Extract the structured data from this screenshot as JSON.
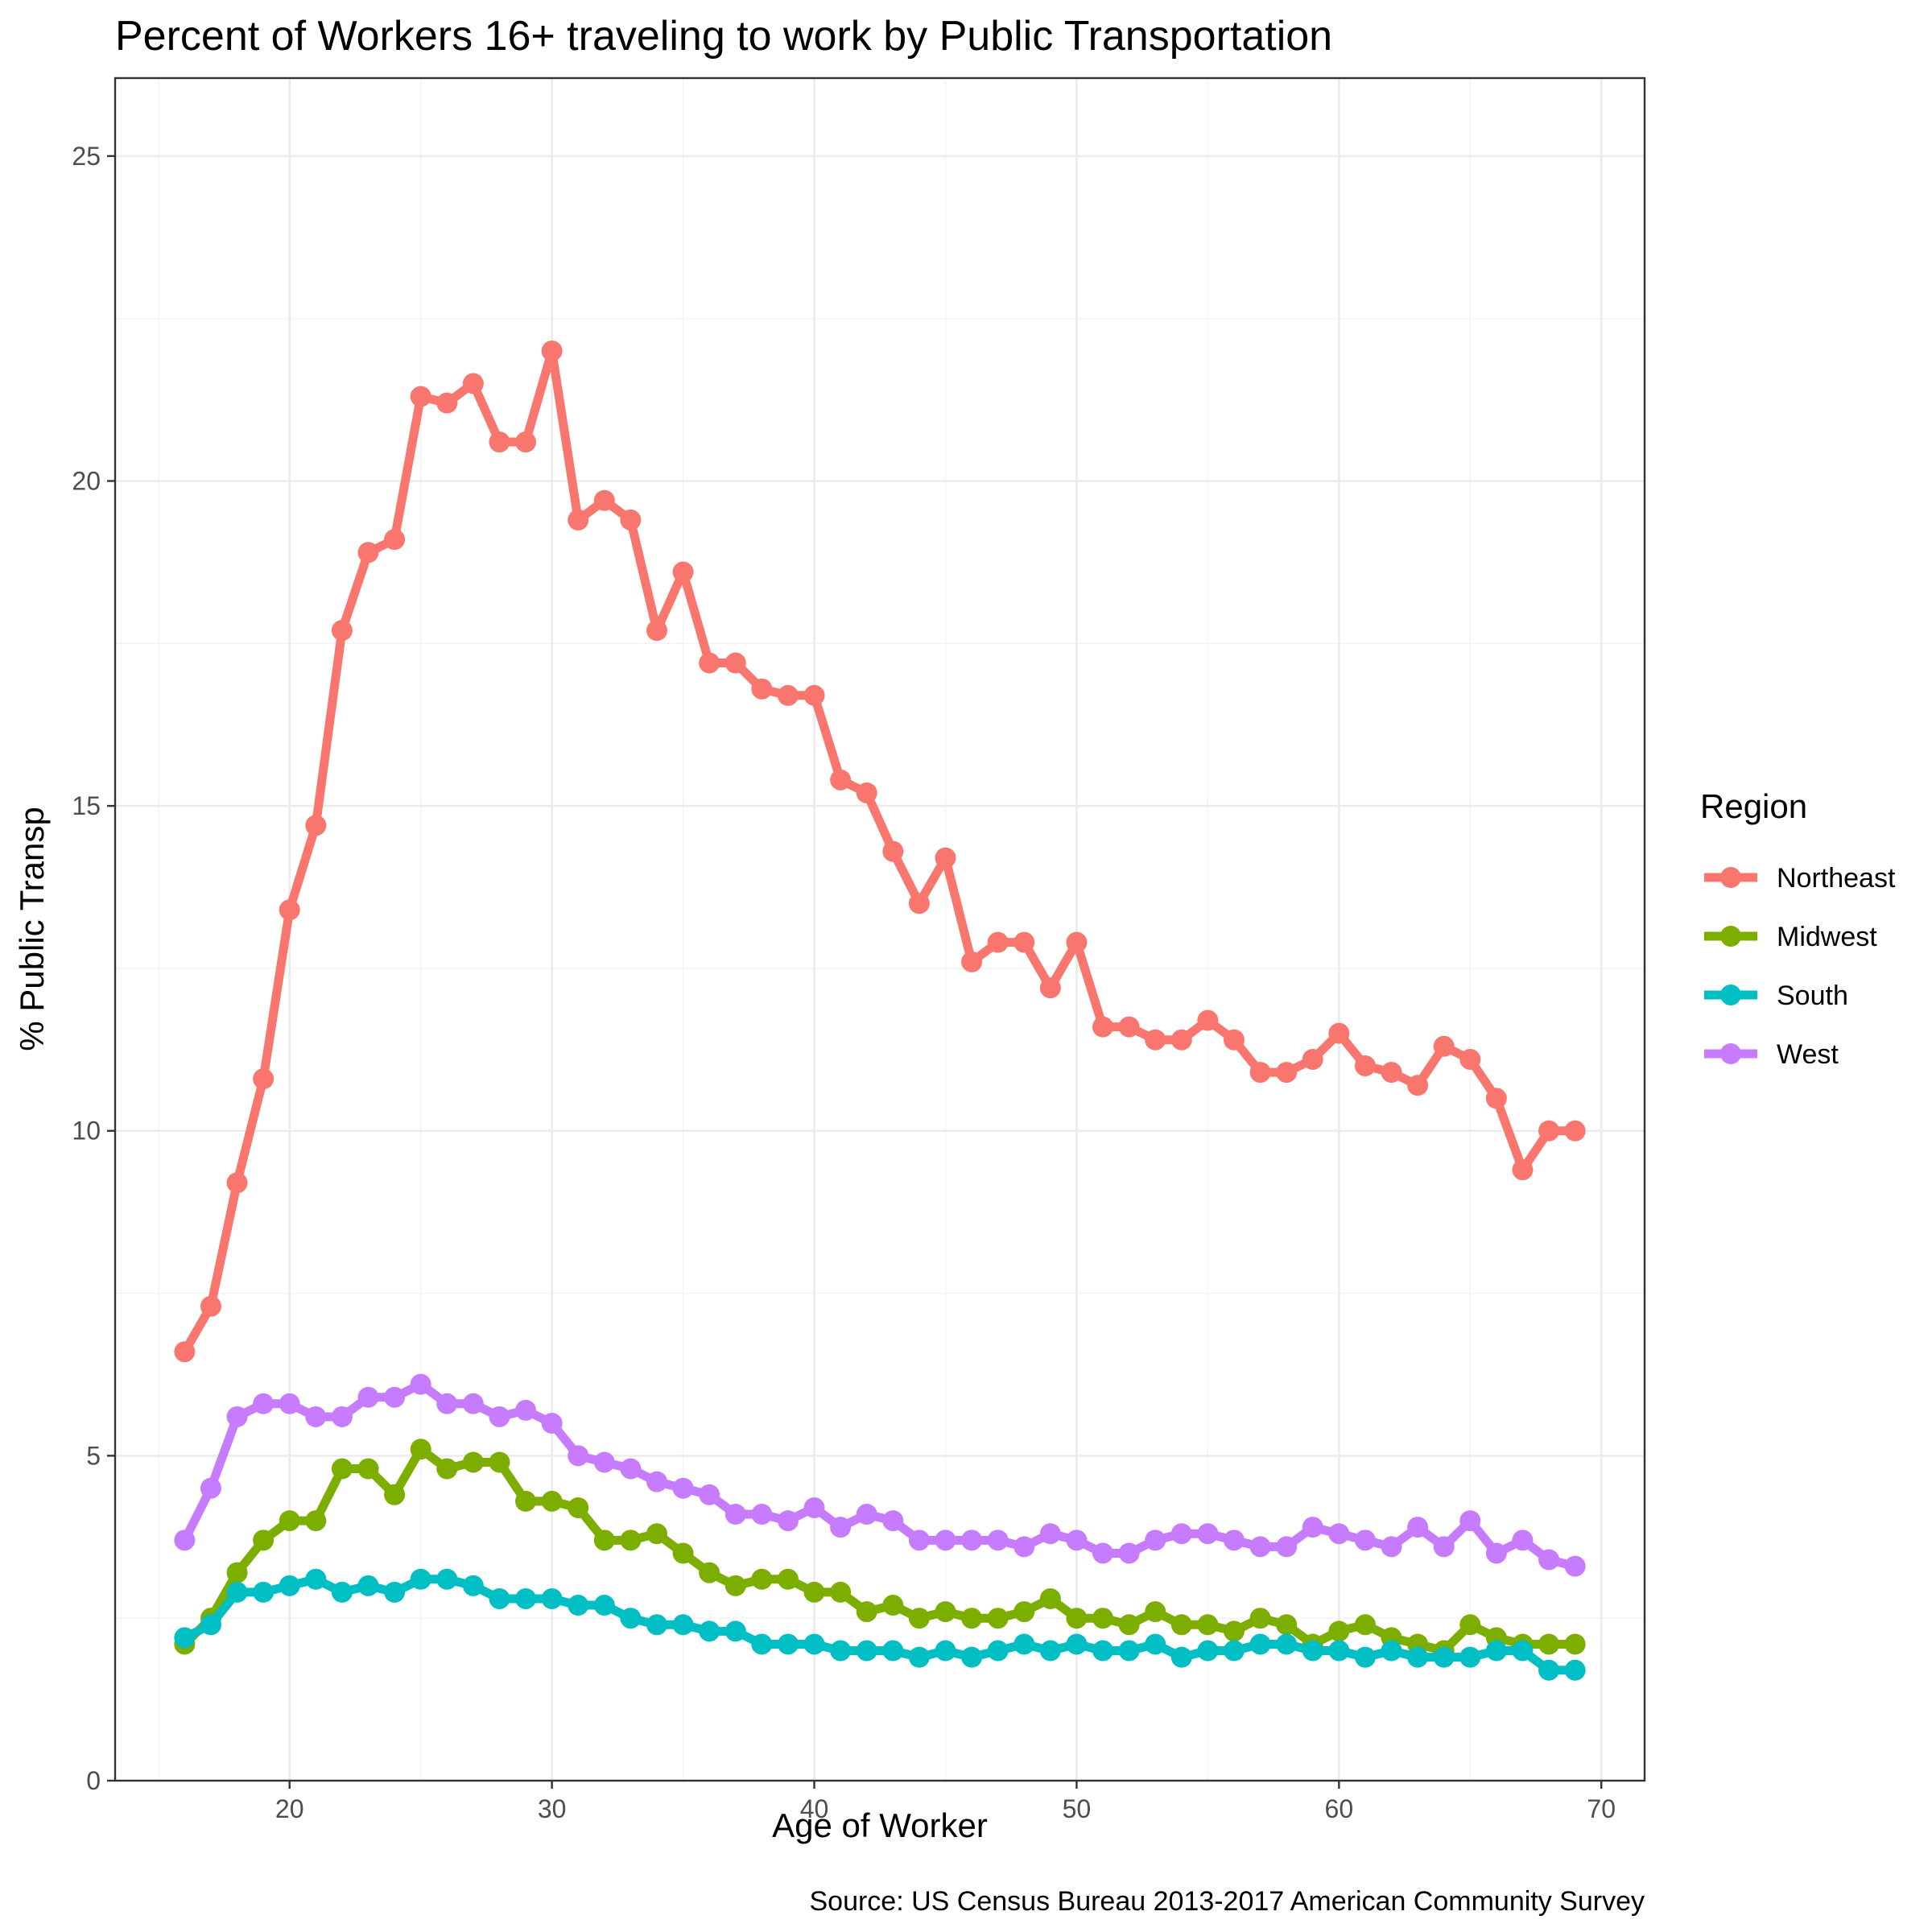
{
  "chart_data": {
    "type": "line",
    "title": "Percent of Workers 16+ traveling to work by Public Transportation",
    "xlabel": "Age of Worker",
    "ylabel": "% Public Transp",
    "caption": "Source: US Census Bureau 2013-2017 American Community Survey",
    "xlim": [
      13.35,
      71.65
    ],
    "ylim": [
      0,
      26.2
    ],
    "x_ticks": [
      20,
      30,
      40,
      50,
      60,
      70
    ],
    "y_ticks": [
      0,
      5,
      10,
      15,
      20,
      25
    ],
    "grid": true,
    "legend": {
      "title": "Region",
      "position": "right"
    },
    "x": [
      16,
      17,
      18,
      19,
      20,
      21,
      22,
      23,
      24,
      25,
      26,
      27,
      28,
      29,
      30,
      31,
      32,
      33,
      34,
      35,
      36,
      37,
      38,
      39,
      40,
      41,
      42,
      43,
      44,
      45,
      46,
      47,
      48,
      49,
      50,
      51,
      52,
      53,
      54,
      55,
      56,
      57,
      58,
      59,
      60,
      61,
      62,
      63,
      64,
      65,
      66,
      67,
      68,
      69
    ],
    "series": [
      {
        "name": "Northeast",
        "color": "#F8766D",
        "values": [
          6.6,
          7.3,
          9.2,
          10.8,
          13.4,
          14.7,
          17.7,
          18.9,
          19.1,
          21.3,
          21.2,
          21.5,
          20.6,
          20.6,
          22.0,
          19.4,
          19.7,
          19.4,
          17.7,
          18.6,
          17.2,
          17.2,
          16.8,
          16.7,
          16.7,
          15.4,
          15.2,
          14.3,
          13.5,
          14.2,
          12.6,
          12.9,
          12.9,
          12.2,
          12.9,
          11.6,
          11.6,
          11.4,
          11.4,
          11.7,
          11.4,
          10.9,
          10.9,
          11.1,
          11.5,
          11.0,
          10.9,
          10.7,
          11.3,
          11.1,
          10.5,
          9.4,
          10.0,
          10.0
        ]
      },
      {
        "name": "Midwest",
        "color": "#7CAE00",
        "values": [
          2.1,
          2.5,
          3.2,
          3.7,
          4.0,
          4.0,
          4.8,
          4.8,
          4.4,
          5.1,
          4.8,
          4.9,
          4.9,
          4.3,
          4.3,
          4.2,
          3.7,
          3.7,
          3.8,
          3.5,
          3.2,
          3.0,
          3.1,
          3.1,
          2.9,
          2.9,
          2.6,
          2.7,
          2.5,
          2.6,
          2.5,
          2.5,
          2.6,
          2.8,
          2.5,
          2.5,
          2.4,
          2.6,
          2.4,
          2.4,
          2.3,
          2.5,
          2.4,
          2.1,
          2.3,
          2.4,
          2.2,
          2.1,
          2.0,
          2.4,
          2.2,
          2.1,
          2.1,
          2.1
        ]
      },
      {
        "name": "South",
        "color": "#00BFC4",
        "values": [
          2.2,
          2.4,
          2.9,
          2.9,
          3.0,
          3.1,
          2.9,
          3.0,
          2.9,
          3.1,
          3.1,
          3.0,
          2.8,
          2.8,
          2.8,
          2.7,
          2.7,
          2.5,
          2.4,
          2.4,
          2.3,
          2.3,
          2.1,
          2.1,
          2.1,
          2.0,
          2.0,
          2.0,
          1.9,
          2.0,
          1.9,
          2.0,
          2.1,
          2.0,
          2.1,
          2.0,
          2.0,
          2.1,
          1.9,
          2.0,
          2.0,
          2.1,
          2.1,
          2.0,
          2.0,
          1.9,
          2.0,
          1.9,
          1.9,
          1.9,
          2.0,
          2.0,
          1.7,
          1.7
        ]
      },
      {
        "name": "West",
        "color": "#C77CFF",
        "values": [
          3.7,
          4.5,
          5.6,
          5.8,
          5.8,
          5.6,
          5.6,
          5.9,
          5.9,
          6.1,
          5.8,
          5.8,
          5.6,
          5.7,
          5.5,
          5.0,
          4.9,
          4.8,
          4.6,
          4.5,
          4.4,
          4.1,
          4.1,
          4.0,
          4.2,
          3.9,
          4.1,
          4.0,
          3.7,
          3.7,
          3.7,
          3.7,
          3.6,
          3.8,
          3.7,
          3.5,
          3.5,
          3.7,
          3.8,
          3.8,
          3.7,
          3.6,
          3.6,
          3.9,
          3.8,
          3.7,
          3.6,
          3.9,
          3.6,
          4.0,
          3.5,
          3.7,
          3.4,
          3.3
        ]
      }
    ]
  }
}
